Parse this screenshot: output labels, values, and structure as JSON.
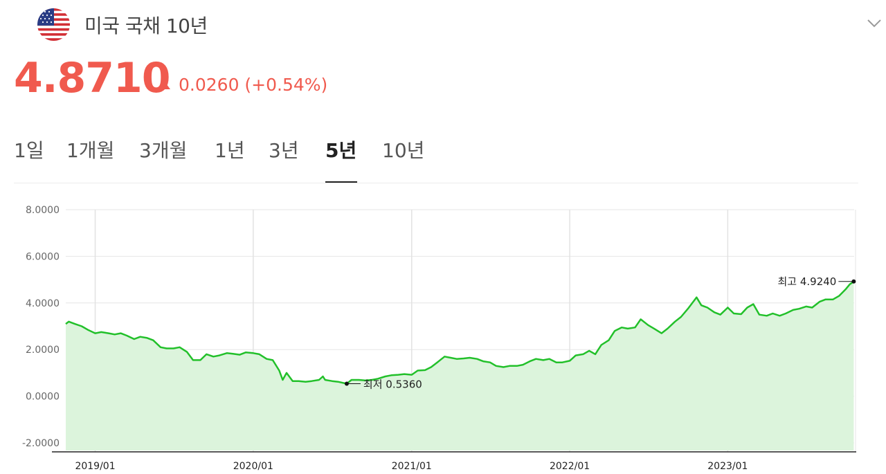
{
  "header": {
    "title": "미국 국채 10년",
    "flag_icon": "us-flag-icon",
    "expand_icon": "chevron-down-icon"
  },
  "quote": {
    "price": "4.8710",
    "change": "0.0260 (+0.54%)",
    "direction": "up",
    "color": "#f05a4e"
  },
  "tabs": [
    {
      "label": "1일",
      "active": false
    },
    {
      "label": "1개월",
      "active": false
    },
    {
      "label": "3개월",
      "active": false
    },
    {
      "label": "1년",
      "active": false
    },
    {
      "label": "3년",
      "active": false
    },
    {
      "label": "5년",
      "active": true
    },
    {
      "label": "10년",
      "active": false
    }
  ],
  "chart_data": {
    "type": "area",
    "title": "",
    "xlabel": "",
    "ylabel": "",
    "ylim": [
      -2.3,
      8.0
    ],
    "yticks": [
      "8.0000",
      "6.0000",
      "4.0000",
      "2.0000",
      "0.0000",
      "-2.0000"
    ],
    "ytick_values": [
      8,
      6,
      4,
      2,
      0,
      -2
    ],
    "xticks": [
      "2019/01",
      "2020/01",
      "2021/01",
      "2022/01",
      "2023/01"
    ],
    "xtick_values": [
      "2019-01-01",
      "2020-01-01",
      "2021-01-01",
      "2022-01-01",
      "2023-01-01"
    ],
    "xlim": [
      "2018-10-25",
      "2023-10-20"
    ],
    "line_color": "#22c02a",
    "fill_color": "#dcf4dc",
    "grid": true,
    "series": [
      {
        "x": [
          "2018-10-25",
          "2018-11-01",
          "2018-11-15",
          "2018-12-01",
          "2018-12-15",
          "2019-01-01",
          "2019-01-15",
          "2019-02-01",
          "2019-02-15",
          "2019-03-01",
          "2019-03-15",
          "2019-04-01",
          "2019-04-15",
          "2019-05-01",
          "2019-05-15",
          "2019-06-01",
          "2019-06-15",
          "2019-07-01",
          "2019-07-15",
          "2019-08-01",
          "2019-08-15",
          "2019-09-01",
          "2019-09-15",
          "2019-10-01",
          "2019-10-15",
          "2019-11-01",
          "2019-11-15",
          "2019-12-01",
          "2019-12-15",
          "2020-01-01",
          "2020-01-15",
          "2020-02-01",
          "2020-02-15",
          "2020-03-01",
          "2020-03-09",
          "2020-03-18",
          "2020-04-01",
          "2020-04-15",
          "2020-05-01",
          "2020-05-15",
          "2020-06-01",
          "2020-06-10",
          "2020-06-15",
          "2020-07-01",
          "2020-07-15",
          "2020-08-04",
          "2020-08-15",
          "2020-09-01",
          "2020-09-15",
          "2020-10-01",
          "2020-10-15",
          "2020-11-01",
          "2020-11-15",
          "2020-12-01",
          "2020-12-15",
          "2021-01-01",
          "2021-01-15",
          "2021-02-01",
          "2021-02-15",
          "2021-03-01",
          "2021-03-18",
          "2021-04-01",
          "2021-04-15",
          "2021-05-01",
          "2021-05-15",
          "2021-06-01",
          "2021-06-15",
          "2021-07-01",
          "2021-07-15",
          "2021-08-01",
          "2021-08-15",
          "2021-09-01",
          "2021-09-15",
          "2021-10-01",
          "2021-10-15",
          "2021-11-01",
          "2021-11-15",
          "2021-12-01",
          "2021-12-15",
          "2022-01-01",
          "2022-01-15",
          "2022-02-01",
          "2022-02-15",
          "2022-03-01",
          "2022-03-15",
          "2022-04-01",
          "2022-04-15",
          "2022-05-01",
          "2022-05-15",
          "2022-06-01",
          "2022-06-14",
          "2022-07-01",
          "2022-07-15",
          "2022-08-01",
          "2022-08-15",
          "2022-09-01",
          "2022-09-15",
          "2022-10-01",
          "2022-10-21",
          "2022-11-01",
          "2022-11-15",
          "2022-12-01",
          "2022-12-15",
          "2023-01-01",
          "2023-01-15",
          "2023-02-01",
          "2023-02-15",
          "2023-03-01",
          "2023-03-15",
          "2023-04-01",
          "2023-04-15",
          "2023-05-01",
          "2023-05-15",
          "2023-06-01",
          "2023-06-15",
          "2023-07-01",
          "2023-07-15",
          "2023-08-01",
          "2023-08-15",
          "2023-09-01",
          "2023-09-15",
          "2023-10-01",
          "2023-10-10",
          "2023-10-19"
        ],
        "y": [
          3.1,
          3.2,
          3.1,
          3.0,
          2.85,
          2.7,
          2.75,
          2.7,
          2.65,
          2.7,
          2.6,
          2.45,
          2.55,
          2.5,
          2.4,
          2.1,
          2.05,
          2.05,
          2.1,
          1.9,
          1.55,
          1.55,
          1.8,
          1.7,
          1.75,
          1.85,
          1.82,
          1.78,
          1.88,
          1.85,
          1.8,
          1.6,
          1.55,
          1.1,
          0.7,
          1.0,
          0.65,
          0.65,
          0.62,
          0.65,
          0.7,
          0.85,
          0.7,
          0.65,
          0.62,
          0.536,
          0.7,
          0.7,
          0.68,
          0.7,
          0.75,
          0.85,
          0.9,
          0.92,
          0.95,
          0.92,
          1.1,
          1.12,
          1.25,
          1.45,
          1.7,
          1.65,
          1.6,
          1.62,
          1.65,
          1.6,
          1.5,
          1.45,
          1.3,
          1.25,
          1.3,
          1.3,
          1.35,
          1.5,
          1.6,
          1.55,
          1.6,
          1.45,
          1.45,
          1.52,
          1.75,
          1.8,
          1.95,
          1.8,
          2.2,
          2.4,
          2.8,
          2.95,
          2.9,
          2.95,
          3.3,
          3.05,
          2.9,
          2.7,
          2.9,
          3.2,
          3.4,
          3.75,
          4.24,
          3.9,
          3.8,
          3.6,
          3.5,
          3.8,
          3.55,
          3.52,
          3.8,
          3.95,
          3.5,
          3.45,
          3.55,
          3.45,
          3.55,
          3.7,
          3.75,
          3.85,
          3.8,
          4.05,
          4.15,
          4.15,
          4.3,
          4.6,
          4.8,
          4.92
        ]
      }
    ],
    "max_label": "최고 4.9240",
    "min_label": "최저 0.5360"
  }
}
